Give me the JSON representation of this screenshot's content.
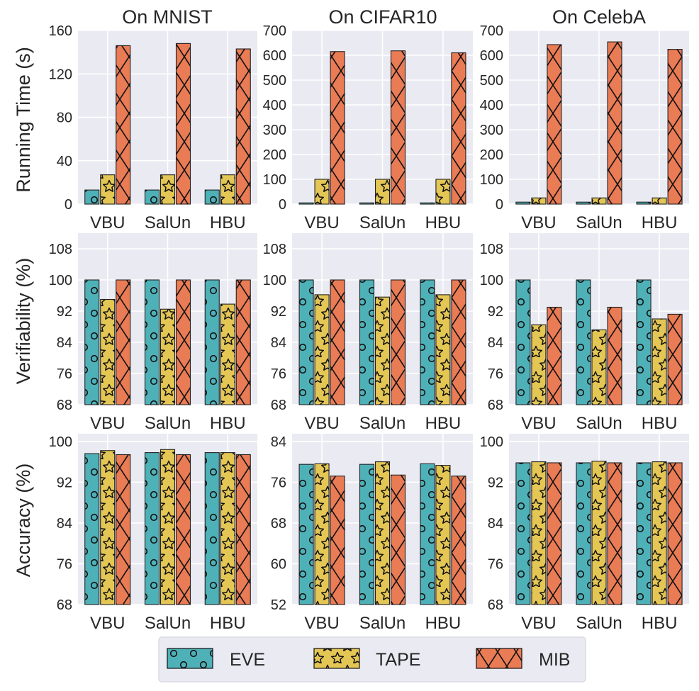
{
  "figure": {
    "column_titles": [
      "On MNIST",
      "On CIFAR10",
      "On CelebA"
    ],
    "row_labels": [
      "Running Time (s)",
      "Verifiability (%)",
      "Accuracy (%)"
    ],
    "legend": [
      {
        "label": "EVE",
        "color": "#4fb1b8",
        "pattern": "circles"
      },
      {
        "label": "TAPE",
        "color": "#e4c654",
        "pattern": "stars"
      },
      {
        "label": "MIB",
        "color": "#e97b55",
        "pattern": "cross-hatch"
      }
    ],
    "colors": {
      "panel_bg": "#eaeaf2",
      "grid": "#ffffff",
      "text": "#262626"
    }
  },
  "chart_data": [
    {
      "type": "bar",
      "row": 0,
      "col": 0,
      "title": "On MNIST",
      "ylabel": "Running Time (s)",
      "categories": [
        "VBU",
        "SalUn",
        "HBU"
      ],
      "ylim": [
        0,
        160
      ],
      "yticks": [
        "0",
        "40",
        "80",
        "120",
        "160"
      ],
      "yticks_values": [
        0,
        40,
        80,
        120,
        160
      ],
      "series": [
        {
          "name": "EVE",
          "values": [
            13,
            13,
            13
          ]
        },
        {
          "name": "TAPE",
          "values": [
            27,
            27,
            27
          ]
        },
        {
          "name": "MIB",
          "values": [
            146,
            148,
            143
          ]
        }
      ]
    },
    {
      "type": "bar",
      "row": 0,
      "col": 1,
      "title": "On CIFAR10",
      "ylabel": "",
      "categories": [
        "VBU",
        "SalUn",
        "HBU"
      ],
      "ylim": [
        0,
        700
      ],
      "yticks": [
        "0",
        "100",
        "200",
        "300",
        "400",
        "500",
        "600",
        "700"
      ],
      "yticks_values": [
        0,
        100,
        200,
        300,
        400,
        500,
        600,
        700
      ],
      "series": [
        {
          "name": "EVE",
          "values": [
            5,
            5,
            5
          ]
        },
        {
          "name": "TAPE",
          "values": [
            100,
            100,
            100
          ]
        },
        {
          "name": "MIB",
          "values": [
            615,
            618,
            610
          ]
        }
      ]
    },
    {
      "type": "bar",
      "row": 0,
      "col": 2,
      "title": "On CelebA",
      "ylabel": "",
      "categories": [
        "VBU",
        "SalUn",
        "HBU"
      ],
      "ylim": [
        0,
        700
      ],
      "yticks": [
        "0",
        "100",
        "200",
        "300",
        "400",
        "500",
        "600",
        "700"
      ],
      "yticks_values": [
        0,
        100,
        200,
        300,
        400,
        500,
        600,
        700
      ],
      "series": [
        {
          "name": "EVE",
          "values": [
            8,
            8,
            8
          ]
        },
        {
          "name": "TAPE",
          "values": [
            25,
            25,
            25
          ]
        },
        {
          "name": "MIB",
          "values": [
            643,
            654,
            624
          ]
        }
      ]
    },
    {
      "type": "bar",
      "row": 1,
      "col": 0,
      "title": "",
      "ylabel": "Verifiability (%)",
      "categories": [
        "VBU",
        "SalUn",
        "HBU"
      ],
      "ylim": [
        68,
        112
      ],
      "yticks": [
        "68",
        "76",
        "84",
        "92",
        "100",
        "108"
      ],
      "yticks_values": [
        68,
        76,
        84,
        92,
        100,
        108
      ],
      "series": [
        {
          "name": "EVE",
          "values": [
            100,
            100,
            100
          ]
        },
        {
          "name": "TAPE",
          "values": [
            95,
            92.5,
            93.8
          ]
        },
        {
          "name": "MIB",
          "values": [
            100,
            100,
            100
          ]
        }
      ]
    },
    {
      "type": "bar",
      "row": 1,
      "col": 1,
      "title": "",
      "ylabel": "",
      "categories": [
        "VBU",
        "SalUn",
        "HBU"
      ],
      "ylim": [
        68,
        112
      ],
      "yticks": [
        "68",
        "76",
        "84",
        "92",
        "100",
        "108"
      ],
      "yticks_values": [
        68,
        76,
        84,
        92,
        100,
        108
      ],
      "series": [
        {
          "name": "EVE",
          "values": [
            100,
            100,
            100
          ]
        },
        {
          "name": "TAPE",
          "values": [
            96.2,
            95.6,
            96.2
          ]
        },
        {
          "name": "MIB",
          "values": [
            100,
            100,
            100
          ]
        }
      ]
    },
    {
      "type": "bar",
      "row": 1,
      "col": 2,
      "title": "",
      "ylabel": "",
      "categories": [
        "VBU",
        "SalUn",
        "HBU"
      ],
      "ylim": [
        68,
        112
      ],
      "yticks": [
        "68",
        "76",
        "84",
        "92",
        "100",
        "108"
      ],
      "yticks_values": [
        68,
        76,
        84,
        92,
        100,
        108
      ],
      "series": [
        {
          "name": "EVE",
          "values": [
            100,
            100,
            100
          ]
        },
        {
          "name": "TAPE",
          "values": [
            88.5,
            87.2,
            90
          ]
        },
        {
          "name": "MIB",
          "values": [
            93,
            93,
            91.2
          ]
        }
      ]
    },
    {
      "type": "bar",
      "row": 2,
      "col": 0,
      "title": "",
      "ylabel": "Accuracy (%)",
      "categories": [
        "VBU",
        "SalUn",
        "HBU"
      ],
      "ylim": [
        68,
        101.5
      ],
      "yticks": [
        "68",
        "76",
        "84",
        "92",
        "100"
      ],
      "yticks_values": [
        68,
        76,
        84,
        92,
        100
      ],
      "series": [
        {
          "name": "EVE",
          "values": [
            97.6,
            97.8,
            97.8
          ]
        },
        {
          "name": "TAPE",
          "values": [
            98.2,
            98.4,
            97.8
          ]
        },
        {
          "name": "MIB",
          "values": [
            97.4,
            97.4,
            97.4
          ]
        }
      ]
    },
    {
      "type": "bar",
      "row": 2,
      "col": 1,
      "title": "",
      "ylabel": "",
      "categories": [
        "VBU",
        "SalUn",
        "HBU"
      ],
      "ylim": [
        52,
        85.5
      ],
      "yticks": [
        "52",
        "60",
        "68",
        "76",
        "84"
      ],
      "yticks_values": [
        52,
        60,
        68,
        76,
        84
      ],
      "series": [
        {
          "name": "EVE",
          "values": [
            79.5,
            79.5,
            79.6
          ]
        },
        {
          "name": "TAPE",
          "values": [
            79.6,
            80,
            79.3
          ]
        },
        {
          "name": "MIB",
          "values": [
            77.2,
            77.4,
            77.2
          ]
        }
      ]
    },
    {
      "type": "bar",
      "row": 2,
      "col": 2,
      "title": "",
      "ylabel": "",
      "categories": [
        "VBU",
        "SalUn",
        "HBU"
      ],
      "ylim": [
        68,
        101.5
      ],
      "yticks": [
        "68",
        "76",
        "84",
        "92",
        "100"
      ],
      "yticks_values": [
        68,
        76,
        84,
        92,
        100
      ],
      "series": [
        {
          "name": "EVE",
          "values": [
            95.8,
            95.8,
            95.8
          ]
        },
        {
          "name": "TAPE",
          "values": [
            96,
            96.1,
            96
          ]
        },
        {
          "name": "MIB",
          "values": [
            95.8,
            95.8,
            95.8
          ]
        }
      ]
    }
  ]
}
